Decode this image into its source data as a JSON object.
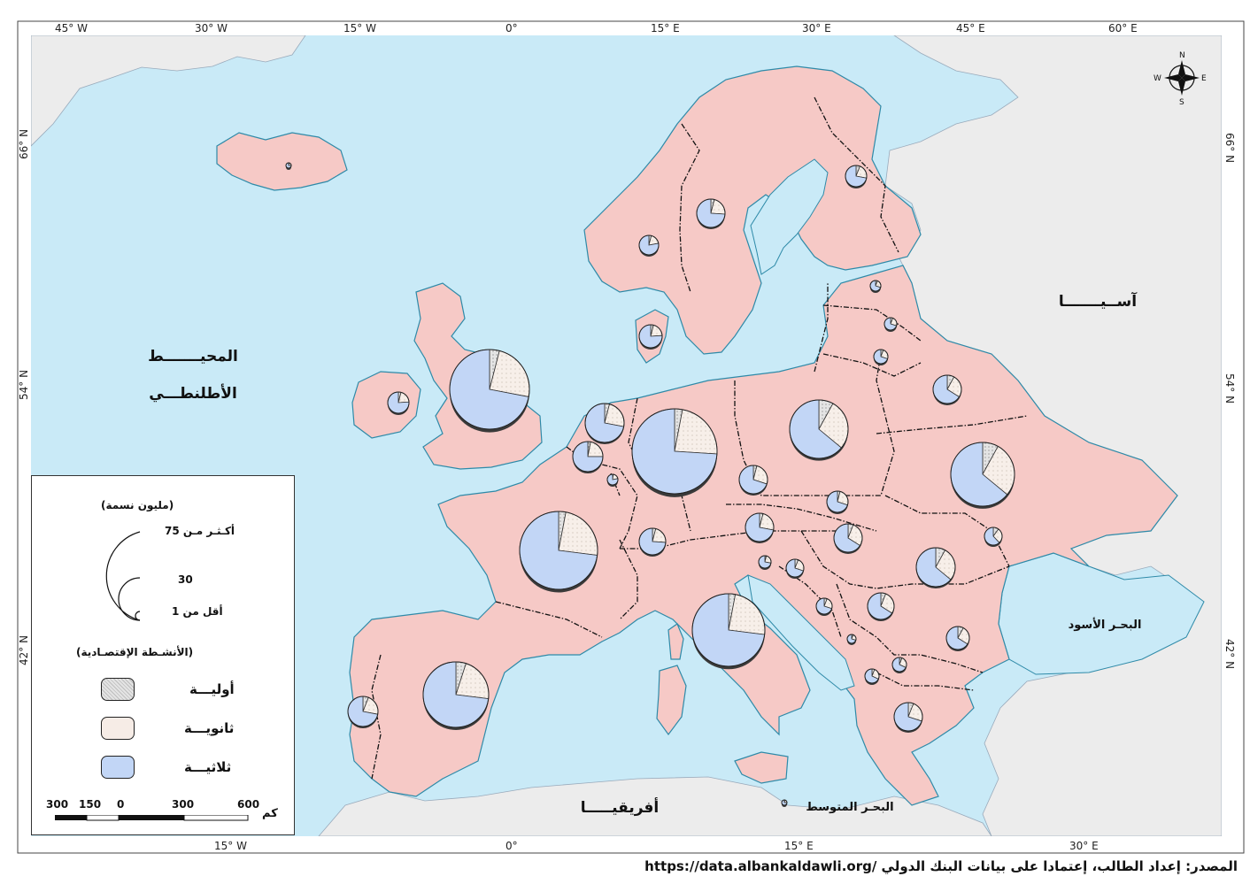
{
  "graticule": {
    "top_longitudes": [
      "45° W",
      "30° W",
      "15° W",
      "0°",
      "15° E",
      "30° E",
      "45° E",
      "60° E"
    ],
    "bottom_longitudes": [
      "15° W",
      "0°",
      "15° E",
      "30° E"
    ],
    "latitudes": [
      "66° N",
      "54° N",
      "42° N"
    ]
  },
  "labels": {
    "atlantic_line1": "المحيـــــــط",
    "atlantic_line2": "الأطلنطـــي",
    "asia": "آســيـــــــا",
    "black_sea": "البحـر الأسود",
    "mediterranean": "البحـر المتوسط",
    "africa": "أفريقيـــــا"
  },
  "compass": {
    "n": "N",
    "s": "S",
    "e": "E",
    "w": "W"
  },
  "legend": {
    "size_title": "(مليون نسمة)",
    "size_large": "أكـثـر مـن 75",
    "size_mid": "30",
    "size_small": "أقل من 1",
    "activities_title": "(الأنشـطة الإقتصـادية)",
    "primary": "أوليـــة",
    "secondary": "ثانويـــة",
    "tertiary": "ثلاثيـــة",
    "primary_color": "#e0e0e0",
    "secondary_color": "#f6ece6",
    "tertiary_color": "#c2d6f6"
  },
  "scale_bar": {
    "ticks": [
      "300",
      "150",
      "0",
      "300",
      "600"
    ],
    "unit": "كم"
  },
  "colors": {
    "sea": "#c9eaf7",
    "europe": "#f6c9c6",
    "other_land": "#ececec",
    "coast": "#2e8aa8"
  },
  "source": "المصدر: إعداد الطالب، إعتمادا على بيانات البنك الدولي /https://data.albankaldawli.org"
}
